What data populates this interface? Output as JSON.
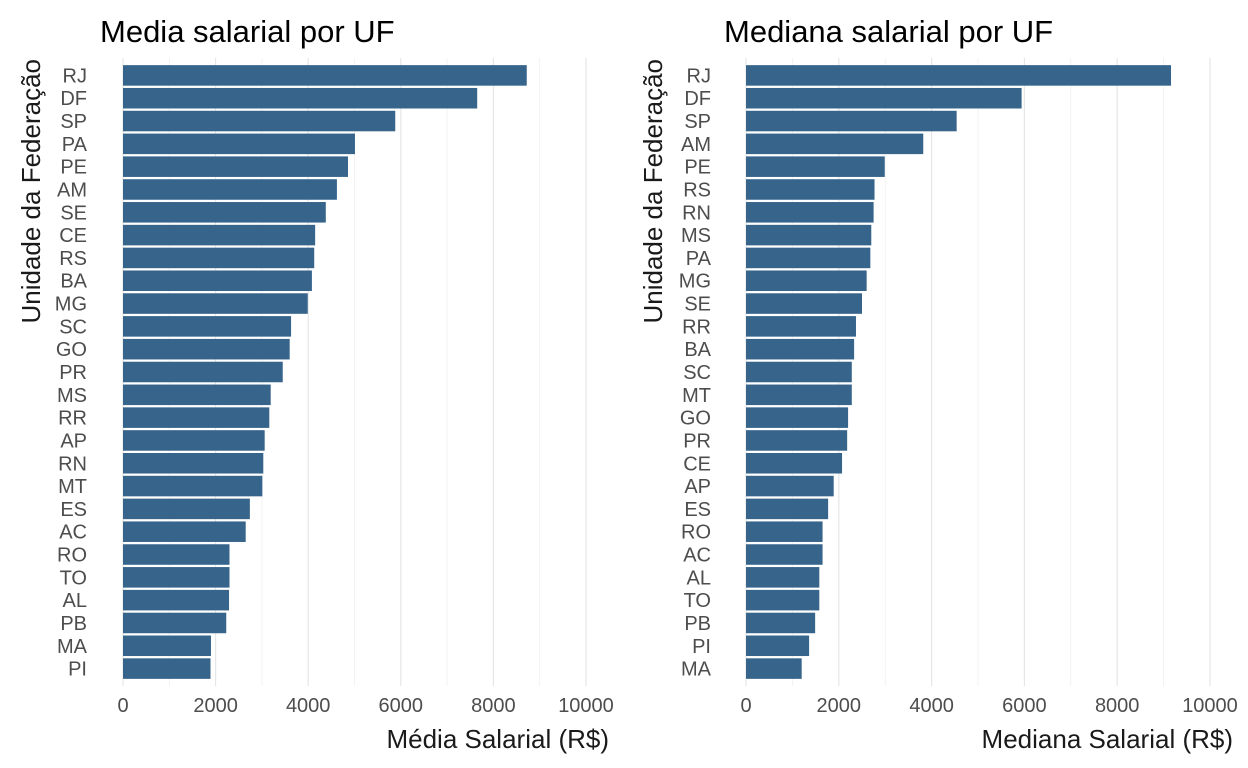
{
  "colors": {
    "bar": "#36648B",
    "grid": "#e6e6e6",
    "text": "#4d4d4d"
  },
  "chart_data": [
    {
      "type": "bar",
      "orientation": "horizontal",
      "title": "Media salarial por UF",
      "xlabel": "Média Salarial (R$)",
      "ylabel": "Unidade da Federação",
      "xlim": [
        0,
        10000
      ],
      "xticks": [
        0,
        2000,
        4000,
        6000,
        8000,
        10000
      ],
      "grid": true,
      "categories": [
        "RJ",
        "DF",
        "SP",
        "PA",
        "PE",
        "AM",
        "SE",
        "CE",
        "RS",
        "BA",
        "MG",
        "SC",
        "GO",
        "PR",
        "MS",
        "RR",
        "AP",
        "RN",
        "MT",
        "ES",
        "AC",
        "RO",
        "TO",
        "AL",
        "PB",
        "MA",
        "PI"
      ],
      "values": [
        8720,
        7650,
        5880,
        5010,
        4860,
        4620,
        4380,
        4150,
        4130,
        4080,
        3990,
        3630,
        3600,
        3450,
        3190,
        3160,
        3060,
        3030,
        3010,
        2740,
        2650,
        2300,
        2300,
        2290,
        2230,
        1900,
        1890
      ]
    },
    {
      "type": "bar",
      "orientation": "horizontal",
      "title": "Mediana salarial por UF",
      "xlabel": "Mediana Salarial (R$)",
      "ylabel": "Unidade da Federação",
      "xlim": [
        0,
        10000
      ],
      "xticks": [
        0,
        2000,
        4000,
        6000,
        8000,
        10000
      ],
      "grid": true,
      "categories": [
        "RJ",
        "DF",
        "SP",
        "AM",
        "PE",
        "RS",
        "RN",
        "MS",
        "PA",
        "MG",
        "SE",
        "RR",
        "BA",
        "SC",
        "MT",
        "GO",
        "PR",
        "CE",
        "AP",
        "ES",
        "RO",
        "AC",
        "AL",
        "TO",
        "PB",
        "PI",
        "MA"
      ],
      "values": [
        9160,
        5940,
        4540,
        3820,
        2990,
        2770,
        2750,
        2700,
        2680,
        2600,
        2500,
        2370,
        2330,
        2280,
        2280,
        2200,
        2180,
        2070,
        1890,
        1770,
        1650,
        1650,
        1580,
        1580,
        1490,
        1360,
        1200
      ]
    }
  ]
}
